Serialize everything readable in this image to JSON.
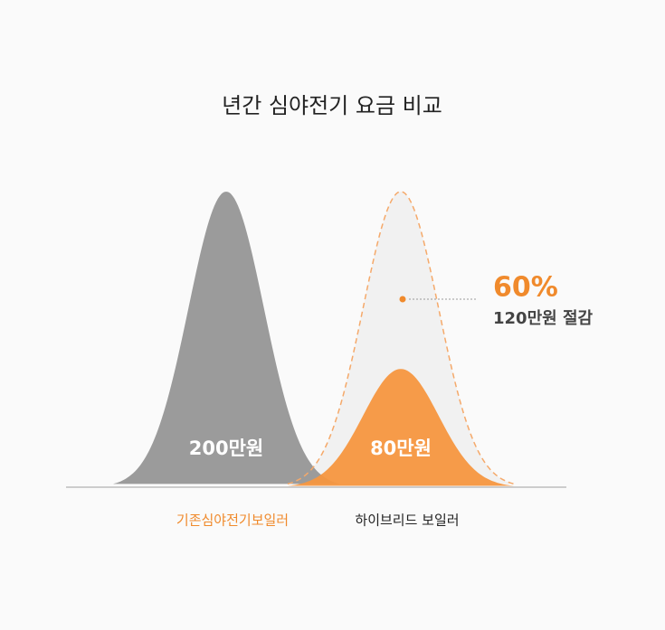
{
  "chart_data": {
    "type": "bell",
    "title": "년간 심야전기 요금 비교",
    "categories": [
      "기존심야전기보일러",
      "하이브리드 보일러"
    ],
    "values": [
      200,
      80
    ],
    "value_labels": [
      "200만원",
      "80만원"
    ],
    "colors": [
      "#9b9b9b",
      "#f5963f"
    ],
    "category_label_colors": [
      "#f08a2c",
      "#222222"
    ],
    "ylim": [
      0,
      200
    ],
    "annotations": [
      {
        "label": "60%"
      },
      {
        "label": "120만원 절감"
      }
    ]
  }
}
